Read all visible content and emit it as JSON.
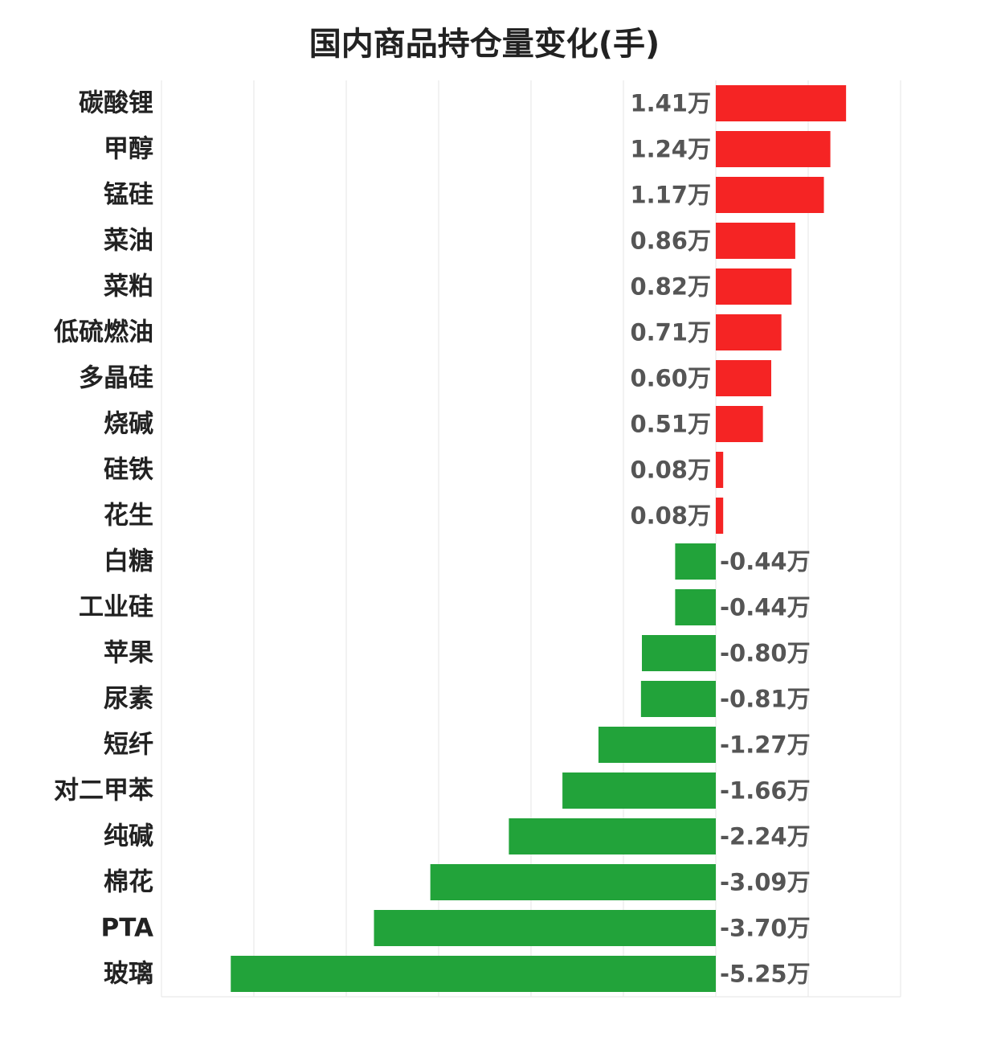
{
  "chart_data": {
    "type": "bar",
    "orientation": "horizontal",
    "title": "国内商品持仓量变化(手)",
    "xlabel": "",
    "ylabel": "",
    "unit_suffix": "万",
    "grid": true,
    "xlim": [
      -6,
      2
    ],
    "categories": [
      "碳酸锂",
      "甲醇",
      "锰硅",
      "菜油",
      "菜粕",
      "低硫燃油",
      "多晶硅",
      "烧碱",
      "硅铁",
      "花生",
      "白糖",
      "工业硅",
      "苹果",
      "尿素",
      "短纤",
      "对二甲苯",
      "纯碱",
      "棉花",
      "PTA",
      "玻璃"
    ],
    "values": [
      1.41,
      1.24,
      1.17,
      0.86,
      0.82,
      0.71,
      0.6,
      0.51,
      0.08,
      0.08,
      -0.44,
      -0.44,
      -0.8,
      -0.81,
      -1.27,
      -1.66,
      -2.24,
      -3.09,
      -3.7,
      -5.25
    ],
    "value_labels": [
      "1.41万",
      "1.24万",
      "1.17万",
      "0.86万",
      "0.82万",
      "0.71万",
      "0.60万",
      "0.51万",
      "0.08万",
      "0.08万",
      "-0.44万",
      "-0.44万",
      "-0.80万",
      "-0.81万",
      "-1.27万",
      "-1.66万",
      "-2.24万",
      "-3.09万",
      "-3.70万",
      "-5.25万"
    ],
    "colors": {
      "positive": "#f52424",
      "negative": "#22a33a",
      "grid": "#e6e6e6"
    }
  }
}
